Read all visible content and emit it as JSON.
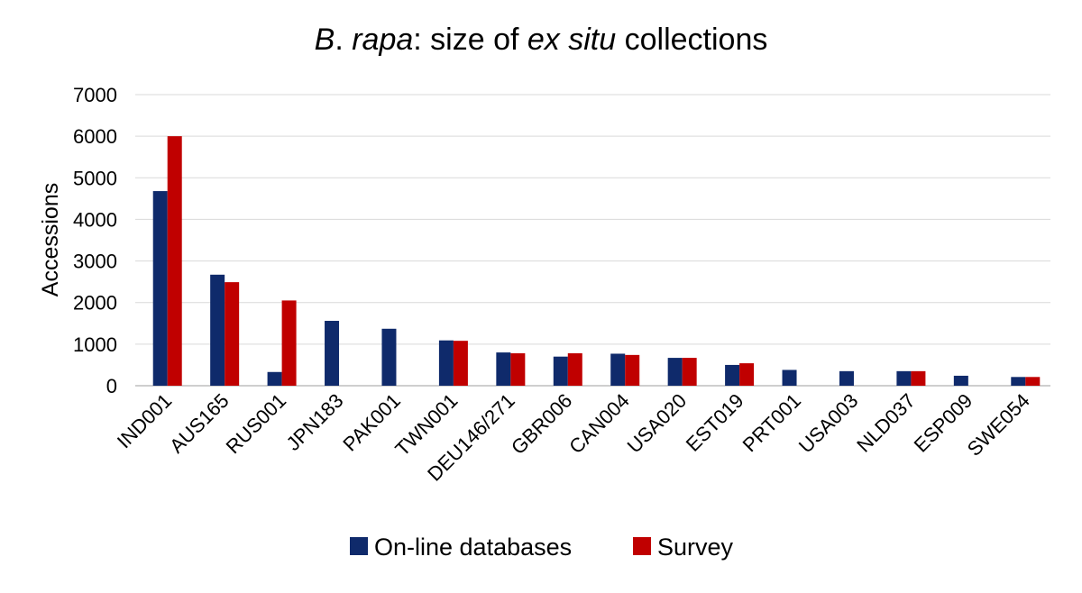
{
  "chart_data": {
    "type": "bar",
    "title_parts": [
      {
        "text": "B",
        "italic": true
      },
      {
        "text": ". ",
        "italic": false
      },
      {
        "text": "rapa",
        "italic": true
      },
      {
        "text": ": size of ",
        "italic": false
      },
      {
        "text": "ex situ",
        "italic": true
      },
      {
        "text": " collections",
        "italic": false
      }
    ],
    "title": "B. rapa: size of ex situ collections",
    "xlabel": "",
    "ylabel": "Accessions",
    "ylim": [
      0,
      7000
    ],
    "yticks": [
      0,
      1000,
      2000,
      3000,
      4000,
      5000,
      6000,
      7000
    ],
    "grid": true,
    "legend_position": "bottom",
    "categories": [
      "IND001",
      "AUS165",
      "RUS001",
      "JPN183",
      "PAK001",
      "TWN001",
      "DEU146/271",
      "GBR006",
      "CAN004",
      "USA020",
      "EST019",
      "PRT001",
      "USA003",
      "NLD037",
      "ESP009",
      "SWE054"
    ],
    "series": [
      {
        "name": "On-line databases",
        "color": "#0f2a6b",
        "values": [
          4680,
          2670,
          330,
          1560,
          1370,
          1090,
          800,
          700,
          770,
          670,
          500,
          380,
          350,
          350,
          240,
          210
        ]
      },
      {
        "name": "Survey",
        "color": "#c00000",
        "values": [
          6000,
          2490,
          2050,
          null,
          null,
          1080,
          780,
          780,
          740,
          670,
          540,
          null,
          null,
          350,
          null,
          210
        ]
      }
    ]
  }
}
